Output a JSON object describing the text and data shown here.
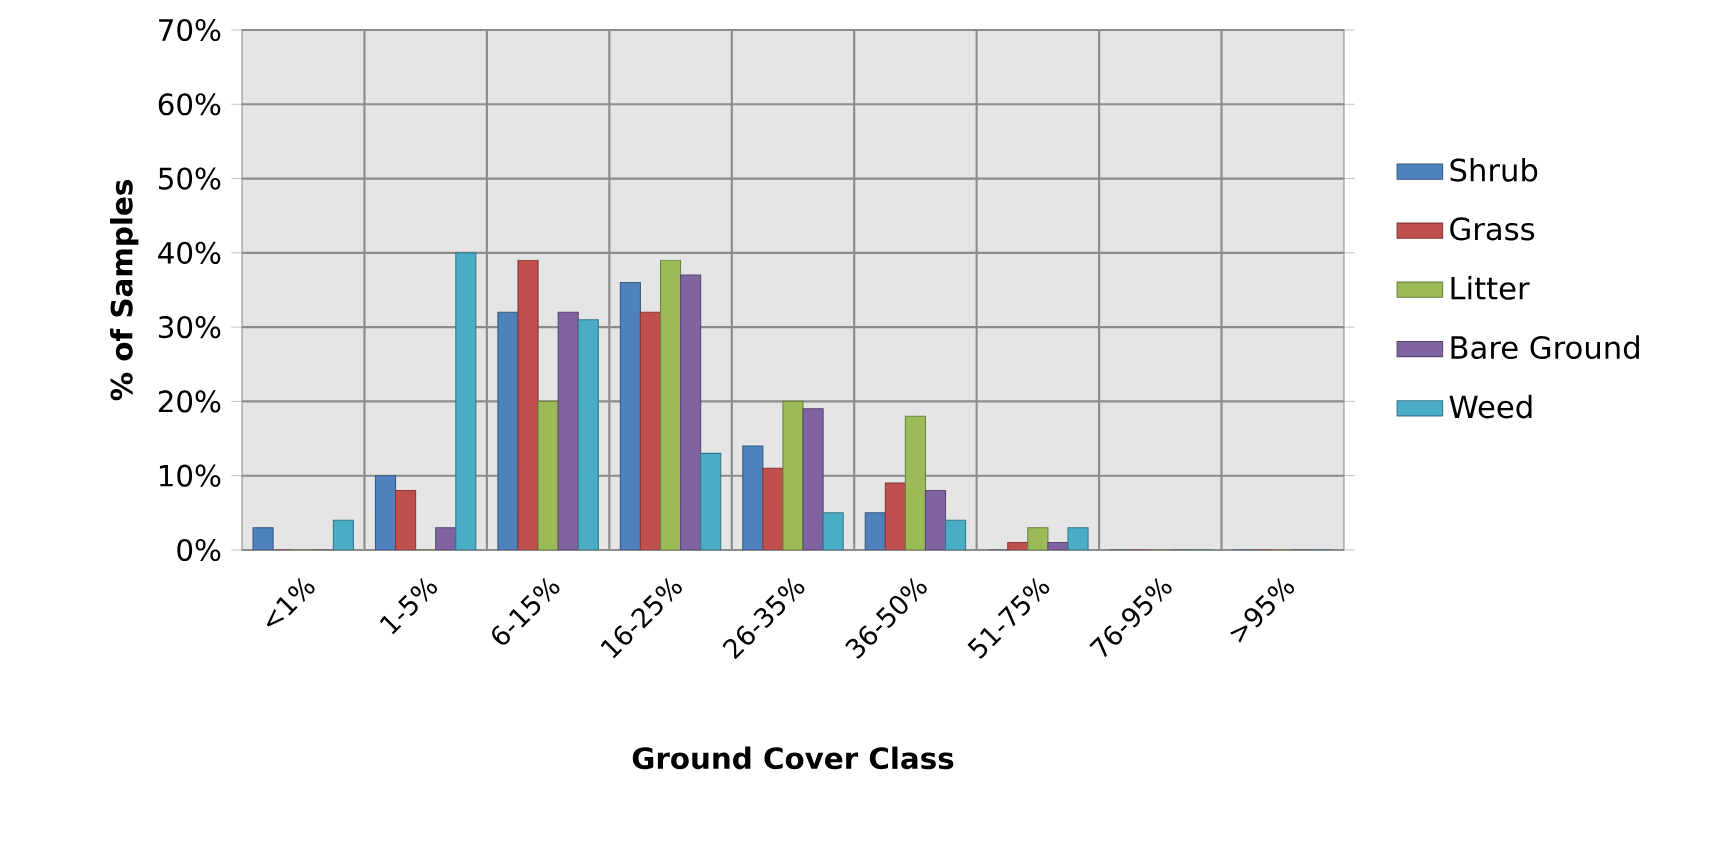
{
  "chart_data": {
    "type": "bar",
    "xlabel": "Ground Cover Class",
    "ylabel": "% of Samples",
    "categories": [
      "<1%",
      "1-5%",
      "6-15%",
      "16-25%",
      "26-35%",
      "36-50%",
      "51-75%",
      "76-95%",
      ">95%"
    ],
    "series": [
      {
        "name": "Shrub",
        "color": "#4f81bd",
        "values": [
          3,
          10,
          32,
          36,
          14,
          5,
          0,
          0,
          0
        ]
      },
      {
        "name": "Grass",
        "color": "#c0504d",
        "values": [
          0,
          8,
          39,
          32,
          11,
          9,
          1,
          0,
          0
        ]
      },
      {
        "name": "Litter",
        "color": "#9bbb59",
        "values": [
          0,
          0,
          20,
          39,
          20,
          18,
          3,
          0,
          0
        ]
      },
      {
        "name": "Bare Ground",
        "color": "#8064a2",
        "values": [
          0,
          3,
          32,
          37,
          19,
          8,
          1,
          0,
          0
        ]
      },
      {
        "name": "Weed",
        "color": "#4bacc6",
        "values": [
          4,
          40,
          31,
          13,
          5,
          4,
          3,
          0,
          0
        ]
      }
    ],
    "ylim": [
      0,
      70
    ],
    "yticks": [
      {
        "value": 0,
        "label": "0%"
      },
      {
        "value": 10,
        "label": "10%"
      },
      {
        "value": 20,
        "label": "20%"
      },
      {
        "value": 30,
        "label": "30%"
      },
      {
        "value": 40,
        "label": "40%"
      },
      {
        "value": 50,
        "label": "50%"
      },
      {
        "value": 60,
        "label": "60%"
      },
      {
        "value": 70,
        "label": "70%"
      }
    ],
    "grid": true,
    "legend": "right"
  }
}
